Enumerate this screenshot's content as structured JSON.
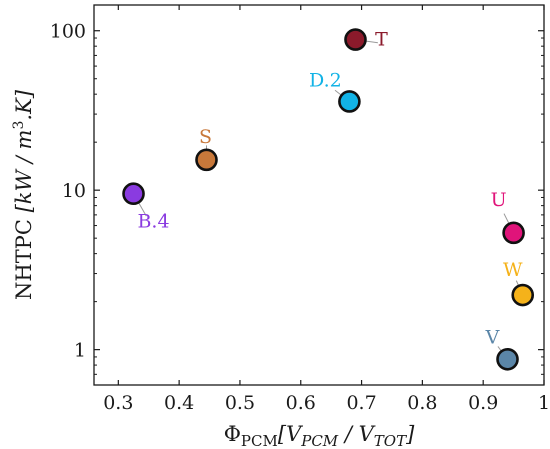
{
  "chart_data": {
    "type": "scatter",
    "title": "",
    "xlabel": "Φ_PCM [V_PCM / V_TOT]",
    "ylabel": "NHTPC [kW / m³.K]",
    "x_scale": "linear",
    "y_scale": "log",
    "xlim": [
      0.26,
      1.0
    ],
    "ylim": [
      0.6,
      145
    ],
    "x_ticks": [
      0.3,
      0.4,
      0.5,
      0.6,
      0.7,
      0.8,
      0.9,
      1.0
    ],
    "x_tick_labels": [
      "0.3",
      "0.4",
      "0.5",
      "0.6",
      "0.7",
      "0.8",
      "0.9",
      "1"
    ],
    "y_ticks": [
      1,
      10,
      100
    ],
    "y_tick_labels": [
      "1",
      "10",
      "100"
    ],
    "grid": false,
    "points": [
      {
        "label": "T",
        "x": 0.69,
        "y": 88,
        "color": "#8b1a2b"
      },
      {
        "label": "D.2",
        "x": 0.68,
        "y": 36,
        "color": "#12b3e6"
      },
      {
        "label": "S",
        "x": 0.445,
        "y": 15.5,
        "color": "#c8783a"
      },
      {
        "label": "B.4",
        "x": 0.325,
        "y": 9.5,
        "color": "#8a3be0"
      },
      {
        "label": "U",
        "x": 0.95,
        "y": 5.4,
        "color": "#e0147a"
      },
      {
        "label": "W",
        "x": 0.965,
        "y": 2.2,
        "color": "#f5b21a"
      },
      {
        "label": "V",
        "x": 0.94,
        "y": 0.87,
        "color": "#5b86a8"
      }
    ]
  }
}
